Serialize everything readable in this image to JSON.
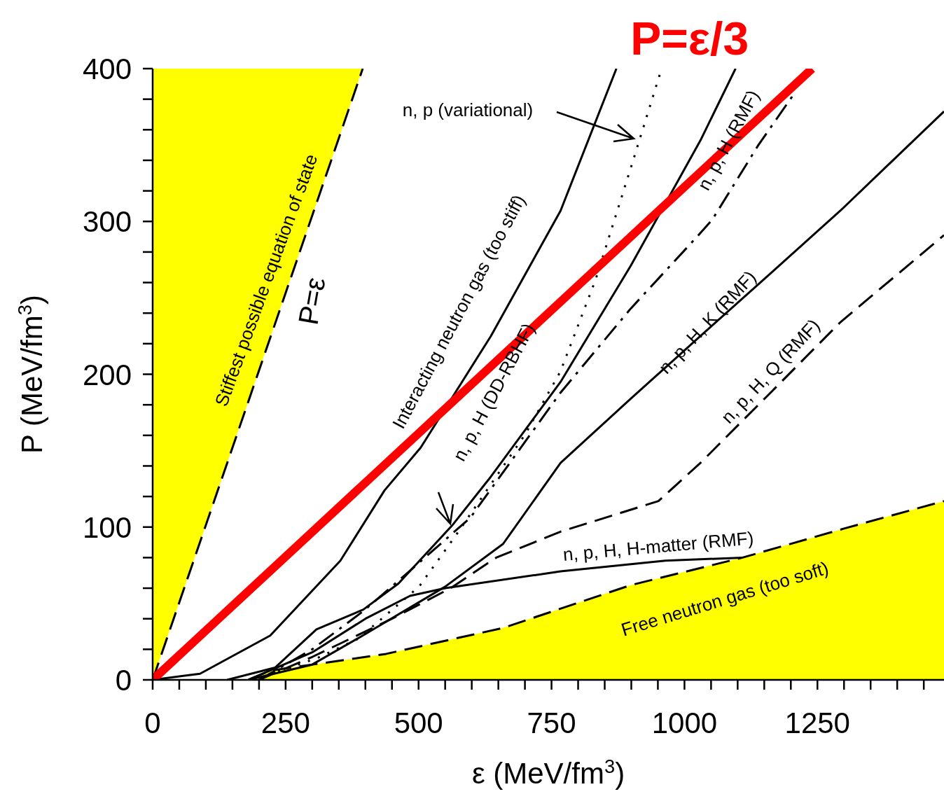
{
  "chart_data": {
    "type": "line",
    "xlabel": "ε (MeV/fm$^{3}$)",
    "ylabel": "P (MeV/fm$^{3}$)",
    "xlim": [
      0,
      1488
    ],
    "ylim": [
      0,
      400
    ],
    "xticks": [
      0,
      {
        "value": 50,
        "label": null
      },
      {
        "value": 100,
        "label": null
      },
      {
        "value": 150,
        "label": null
      },
      {
        "value": 200,
        "label": null
      },
      250,
      {
        "value": 300,
        "label": null
      },
      {
        "value": 350,
        "label": null
      },
      {
        "value": 400,
        "label": null
      },
      {
        "value": 450,
        "label": null
      },
      500,
      {
        "value": 550,
        "label": null
      },
      {
        "value": 600,
        "label": null
      },
      {
        "value": 650,
        "label": null
      },
      {
        "value": 700,
        "label": null
      },
      750,
      {
        "value": 800,
        "label": null
      },
      {
        "value": 850,
        "label": null
      },
      {
        "value": 900,
        "label": null
      },
      {
        "value": 950,
        "label": null
      },
      1000,
      {
        "value": 1050,
        "label": null
      },
      {
        "value": 1100,
        "label": null
      },
      {
        "value": 1150,
        "label": null
      },
      {
        "value": 1200,
        "label": null
      },
      1250,
      {
        "value": 1300,
        "label": null
      },
      {
        "value": 1350,
        "label": null
      },
      {
        "value": 1400,
        "label": null
      },
      {
        "value": 1450,
        "label": null
      }
    ],
    "yticks": [
      0,
      {
        "value": 20,
        "label": null
      },
      {
        "value": 40,
        "label": null
      },
      {
        "value": 60,
        "label": null
      },
      {
        "value": 80,
        "label": null
      },
      100,
      {
        "value": 120,
        "label": null
      },
      {
        "value": 140,
        "label": null
      },
      {
        "value": 160,
        "label": null
      },
      {
        "value": 180,
        "label": null
      },
      200,
      {
        "value": 220,
        "label": null
      },
      {
        "value": 240,
        "label": null
      },
      {
        "value": 260,
        "label": null
      },
      {
        "value": 280,
        "label": null
      },
      300,
      {
        "value": 320,
        "label": null
      },
      {
        "value": 340,
        "label": null
      },
      {
        "value": 360,
        "label": null
      },
      {
        "value": 380,
        "label": null
      },
      400
    ],
    "series": [
      {
        "color": "#000000",
        "line_style": "dashed",
        "x": [
          0,
          395
        ],
        "values": [
          0,
          400
        ]
      },
      {
        "type": "line",
        "color": "#000000",
        "line_style": "dashed",
        "x": [
          180,
          221,
          439,
          659,
          899,
          1109,
          1300,
          1488
        ],
        "values": [
          0,
          6,
          17,
          34,
          62,
          80,
          99,
          117
        ]
      },
      {
        "type": "line",
        "color": "#000000",
        "line_style": "solid",
        "x": [
          0,
          89,
          221,
          353,
          436,
          504,
          636,
          767,
          872
        ],
        "values": [
          0,
          4,
          29,
          78,
          124,
          152,
          225,
          307,
          400
        ]
      },
      {
        "type": "line",
        "color": "#000000",
        "line_style": "dotted",
        "x": [
          200,
          221,
          308,
          387,
          501,
          571,
          701,
          767,
          833,
          899,
          957
        ],
        "values": [
          0,
          4,
          14,
          27,
          61,
          95,
          161,
          202,
          262,
          335,
          400
        ]
      },
      {
        "type": "line",
        "color": "#000000",
        "line_style": "solid",
        "x": [
          140,
          230,
          308,
          396,
          462,
          563,
          636,
          767,
          899,
          1030,
          1096
        ],
        "values": [
          0,
          8,
          33,
          46,
          63,
          101,
          133,
          195,
          271,
          353,
          400
        ]
      },
      {
        "type": "line",
        "color": "#000000",
        "line_style": "dashdot",
        "x": [
          200,
          300,
          396,
          466,
          597,
          767,
          899,
          1021,
          1052,
          1139,
          1205
        ],
        "values": [
          0,
          20,
          45,
          66,
          106,
          188,
          243,
          289,
          301,
          350,
          383
        ]
      },
      {
        "type": "line",
        "color": "#000000",
        "line_style": "solid",
        "x": [
          180,
          300,
          400,
          550,
          659,
          767,
          899,
          1030,
          1162,
          1293,
          1488
        ],
        "values": [
          0,
          10,
          30,
          61,
          89,
          142,
          184,
          225,
          266,
          307,
          372
        ]
      },
      {
        "type": "line",
        "color": "#000000",
        "line_style": "dashed",
        "x": [
          200,
          300,
          450,
          560,
          646,
          767,
          951,
          1030,
          1162,
          1293,
          1488
        ],
        "values": [
          0,
          15,
          40,
          60,
          80,
          97,
          117,
          142,
          188,
          234,
          291
        ]
      },
      {
        "type": "line",
        "color": "#000000",
        "line_style": "solid",
        "x": [
          180,
          300,
          400,
          484,
          550,
          767,
          964,
          1109
        ],
        "values": [
          0,
          18,
          40,
          55,
          60,
          71,
          78,
          80
        ]
      },
      {
        "type": "line",
        "name": "P=ε/3",
        "color": "#ff0000",
        "line_style": "solid",
        "x": [
          0,
          1240
        ],
        "values": [
          0,
          400
        ]
      }
    ],
    "annotations": [
      "Stiffest possible equation of state",
      "P=ε",
      "n, p (variational)",
      "Interacting neutron gas (too stiff)",
      "n, p, H (DD-RBHF)",
      "n, p, H (RMF)",
      "n, p, H, K (RMF)",
      "n, p, H, Q (RMF)",
      "n, p, H, H-matter (RMF)",
      "Free neutron gas (too soft)"
    ]
  }
}
